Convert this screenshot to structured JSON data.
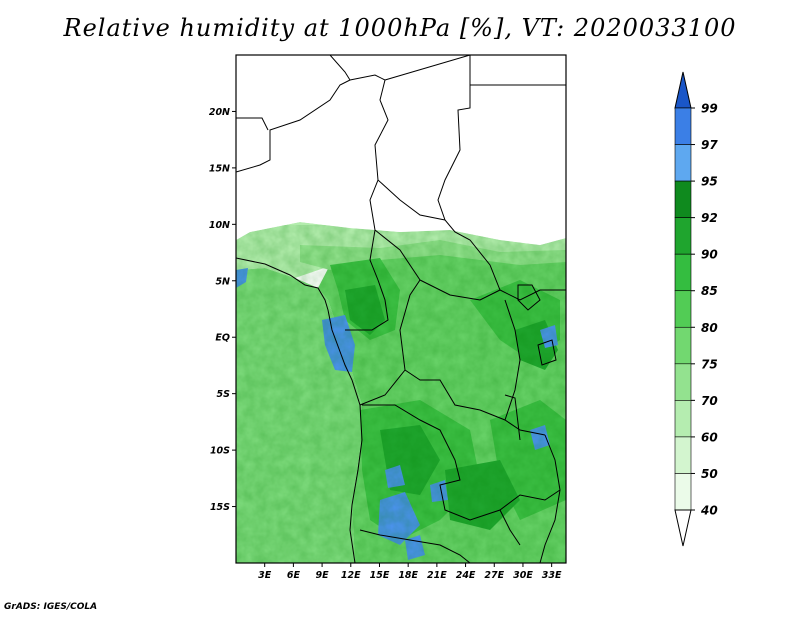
{
  "title": "Relative humidity at 1000hPa [%], VT: 2020033100",
  "credit": "GrADS: IGES/COLA",
  "map": {
    "region": "Central Africa",
    "variable": "Relative humidity at 1000hPa",
    "units": "%",
    "valid_time": "2020033100",
    "lon_range": [
      0,
      34.5
    ],
    "lat_range": [
      -20,
      25
    ],
    "lat_ticks": [
      {
        "value": 20,
        "label": "20N"
      },
      {
        "value": 15,
        "label": "15N"
      },
      {
        "value": 10,
        "label": "10N"
      },
      {
        "value": 5,
        "label": "5N"
      },
      {
        "value": 0,
        "label": "EQ"
      },
      {
        "value": -5,
        "label": "5S"
      },
      {
        "value": -10,
        "label": "10S"
      },
      {
        "value": -15,
        "label": "15S"
      }
    ],
    "lon_ticks": [
      {
        "value": 3,
        "label": "3E"
      },
      {
        "value": 6,
        "label": "6E"
      },
      {
        "value": 9,
        "label": "9E"
      },
      {
        "value": 12,
        "label": "12E"
      },
      {
        "value": 15,
        "label": "15E"
      },
      {
        "value": 18,
        "label": "18E"
      },
      {
        "value": 21,
        "label": "21E"
      },
      {
        "value": 24,
        "label": "24E"
      },
      {
        "value": 27,
        "label": "27E"
      },
      {
        "value": 30,
        "label": "30E"
      },
      {
        "value": 33,
        "label": "33E"
      }
    ]
  },
  "colorbar": {
    "levels": [
      {
        "label": "99",
        "color": "#1f5fd0"
      },
      {
        "label": "97",
        "color": "#3b7fe6"
      },
      {
        "label": "95",
        "color": "#5ea8f0"
      },
      {
        "label": "92",
        "color": "#0f8a1e"
      },
      {
        "label": "90",
        "color": "#1fa52e"
      },
      {
        "label": "85",
        "color": "#34bd40"
      },
      {
        "label": "80",
        "color": "#52cc55"
      },
      {
        "label": "75",
        "color": "#72d870"
      },
      {
        "label": "70",
        "color": "#93e28f"
      },
      {
        "label": "60",
        "color": "#b5edb0"
      },
      {
        "label": "50",
        "color": "#d3f5cf"
      },
      {
        "label": "40",
        "color": "#ebfbe9"
      }
    ],
    "top_color": "#1a56c8",
    "bottom_color": "#ffffff"
  }
}
